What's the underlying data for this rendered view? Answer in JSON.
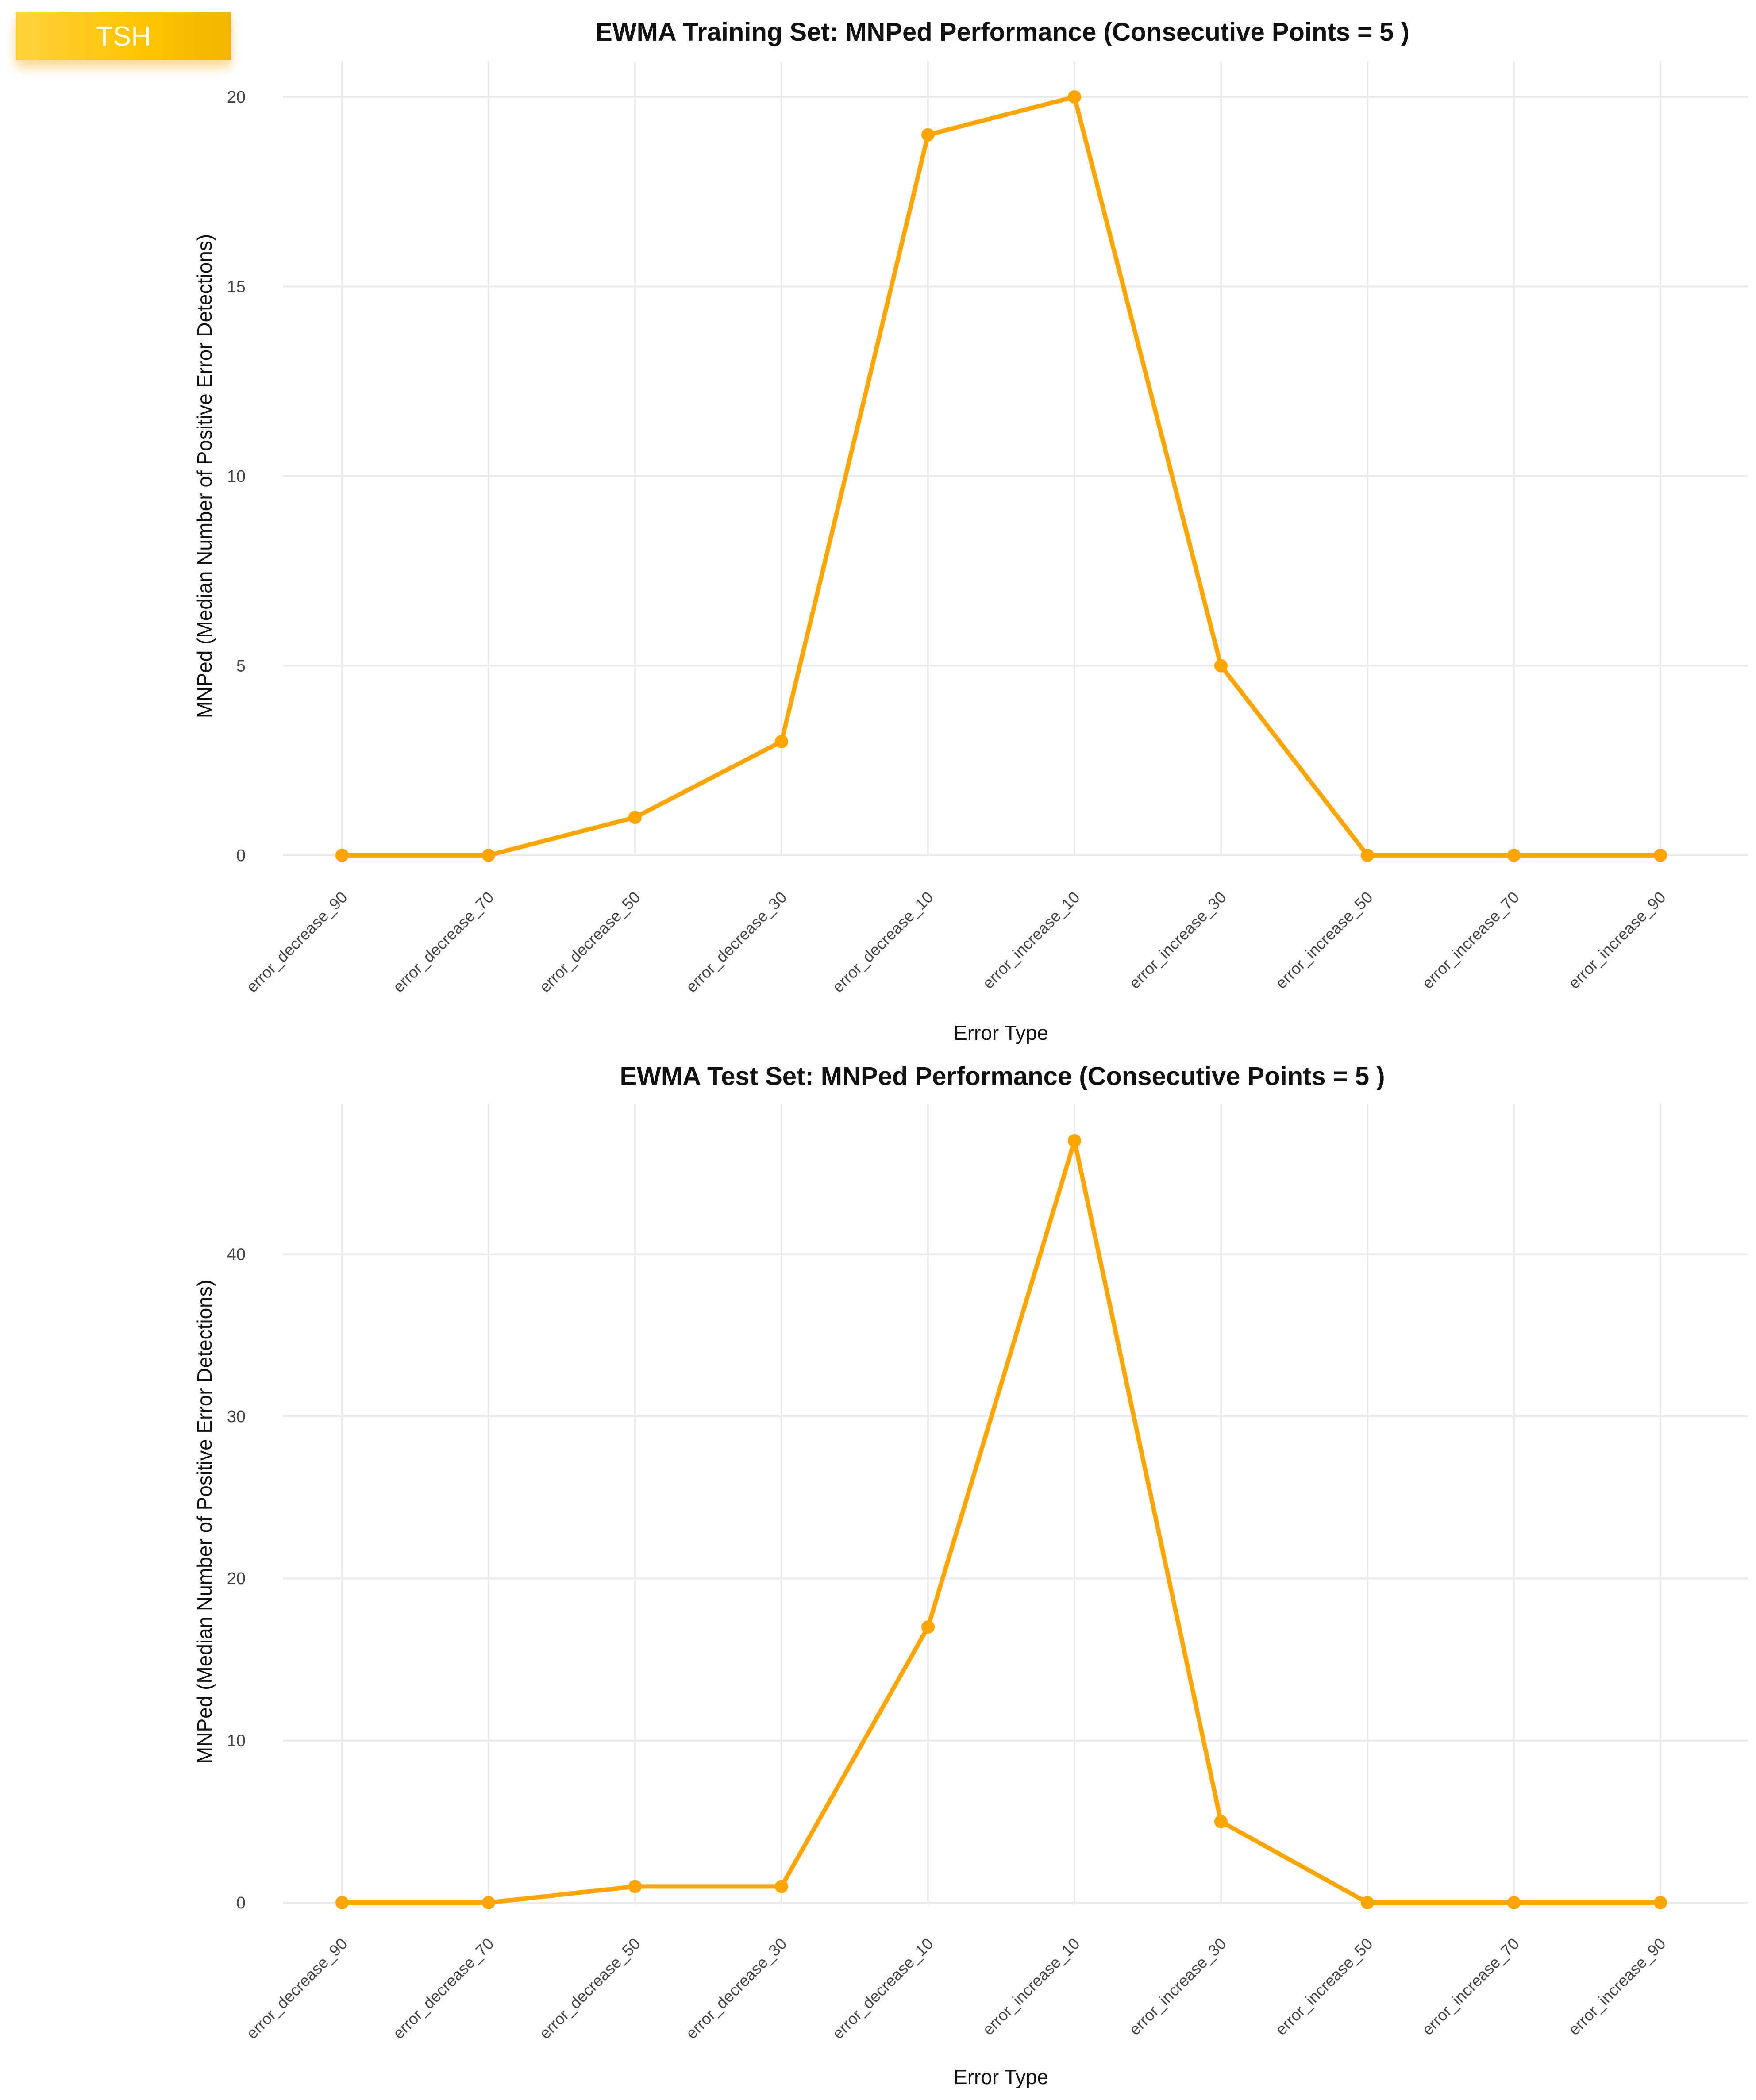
{
  "badge": {
    "label": "TSH"
  },
  "colors": {
    "series": "#ffa500",
    "badge": "#ffc400"
  },
  "chart_data": [
    {
      "type": "line",
      "title": "EWMA Training Set: MNPed Performance (Consecutive Points = 5 )",
      "xlabel": "Error Type",
      "ylabel": "MNPed (Median Number of Positive Error Detections)",
      "categories": [
        "error_decrease_90",
        "error_decrease_70",
        "error_decrease_50",
        "error_decrease_30",
        "error_decrease_10",
        "error_increase_10",
        "error_increase_30",
        "error_increase_50",
        "error_increase_70",
        "error_increase_90"
      ],
      "values": [
        0,
        0,
        1,
        3,
        19,
        20,
        5,
        0,
        0,
        0
      ],
      "yticks": [
        0,
        5,
        10,
        15,
        20
      ],
      "ylim": [
        0,
        20
      ],
      "grid": true
    },
    {
      "type": "line",
      "title": "EWMA Test Set: MNPed Performance (Consecutive Points = 5 )",
      "xlabel": "Error Type",
      "ylabel": "MNPed (Median Number of Positive Error Detections)",
      "categories": [
        "error_decrease_90",
        "error_decrease_70",
        "error_decrease_50",
        "error_decrease_30",
        "error_decrease_10",
        "error_increase_10",
        "error_increase_30",
        "error_increase_50",
        "error_increase_70",
        "error_increase_90"
      ],
      "values": [
        0,
        0,
        1,
        1,
        17,
        47,
        5,
        0,
        0,
        0
      ],
      "yticks": [
        0,
        10,
        20,
        30,
        40
      ],
      "ylim": [
        0,
        47
      ],
      "grid": true
    }
  ]
}
